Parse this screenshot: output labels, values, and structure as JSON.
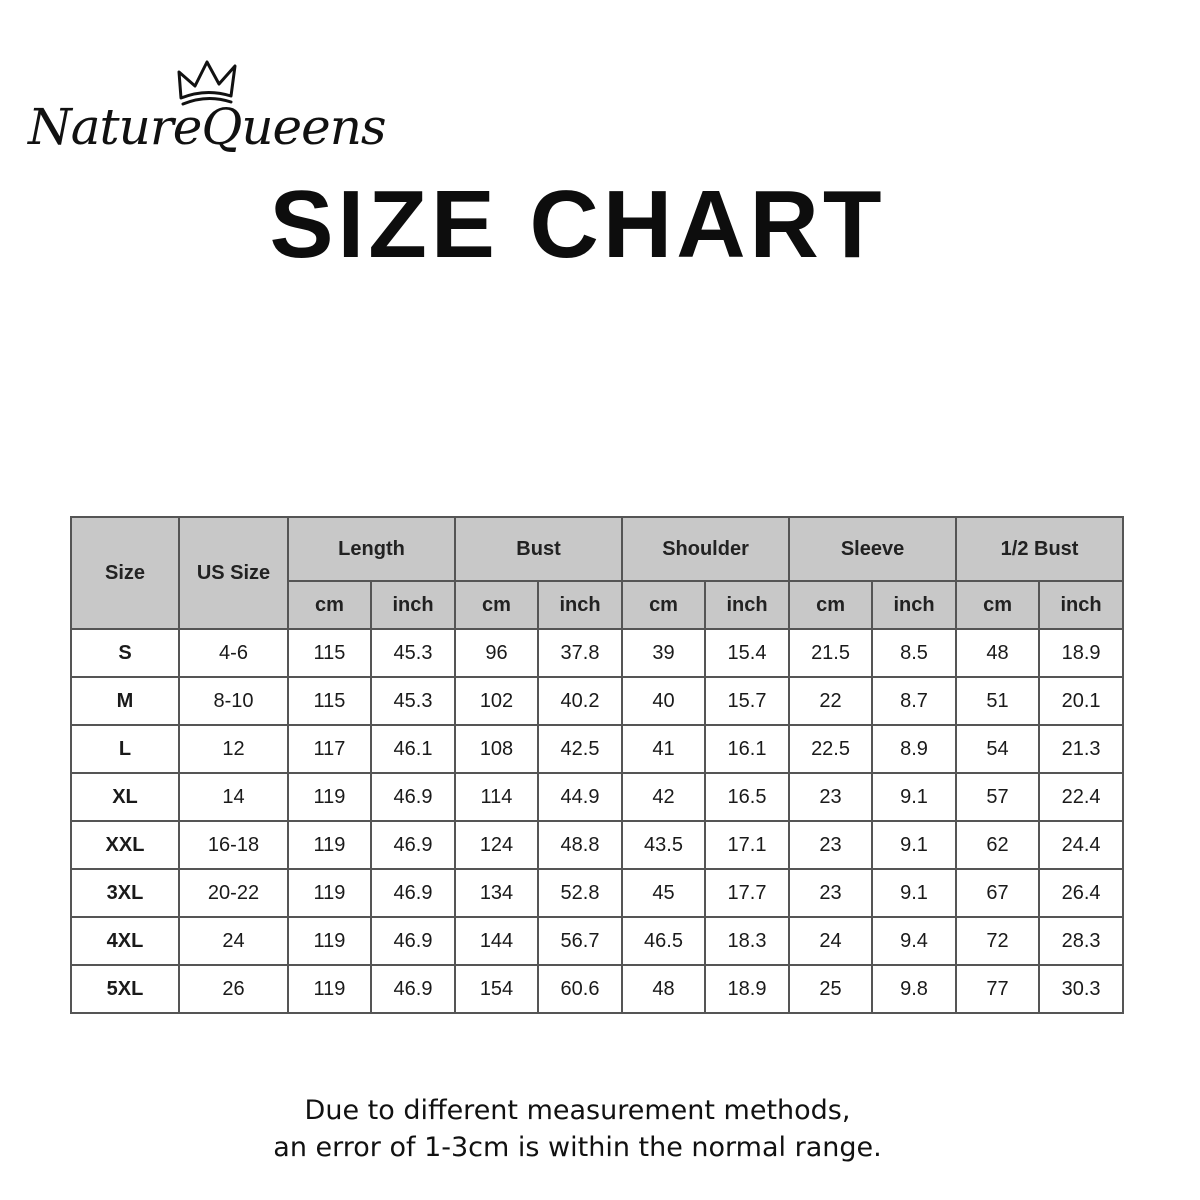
{
  "brand": {
    "name": "NatureQueens",
    "icon": "crown-icon"
  },
  "title": "SIZE CHART",
  "table": {
    "group_headers": [
      "Size",
      "US Size",
      "Length",
      "Bust",
      "Shoulder",
      "Sleeve",
      "1/2 Bust"
    ],
    "unit_headers": [
      "cm",
      "inch",
      "cm",
      "inch",
      "cm",
      "inch",
      "cm",
      "inch",
      "cm",
      "inch"
    ],
    "rows": [
      [
        "S",
        "4-6",
        "115",
        "45.3",
        "96",
        "37.8",
        "39",
        "15.4",
        "21.5",
        "8.5",
        "48",
        "18.9"
      ],
      [
        "M",
        "8-10",
        "115",
        "45.3",
        "102",
        "40.2",
        "40",
        "15.7",
        "22",
        "8.7",
        "51",
        "20.1"
      ],
      [
        "L",
        "12",
        "117",
        "46.1",
        "108",
        "42.5",
        "41",
        "16.1",
        "22.5",
        "8.9",
        "54",
        "21.3"
      ],
      [
        "XL",
        "14",
        "119",
        "46.9",
        "114",
        "44.9",
        "42",
        "16.5",
        "23",
        "9.1",
        "57",
        "22.4"
      ],
      [
        "XXL",
        "16-18",
        "119",
        "46.9",
        "124",
        "48.8",
        "43.5",
        "17.1",
        "23",
        "9.1",
        "62",
        "24.4"
      ],
      [
        "3XL",
        "20-22",
        "119",
        "46.9",
        "134",
        "52.8",
        "45",
        "17.7",
        "23",
        "9.1",
        "67",
        "26.4"
      ],
      [
        "4XL",
        "24",
        "119",
        "46.9",
        "144",
        "56.7",
        "46.5",
        "18.3",
        "24",
        "9.4",
        "72",
        "28.3"
      ],
      [
        "5XL",
        "26",
        "119",
        "46.9",
        "154",
        "60.6",
        "48",
        "18.9",
        "25",
        "9.8",
        "77",
        "30.3"
      ]
    ]
  },
  "note": {
    "line1": "Due to different measurement methods,",
    "line2": "an error of 1-3cm is within the normal range."
  },
  "colors": {
    "header_bg": "#c8c8c8",
    "border": "#555555",
    "text": "#111111"
  }
}
